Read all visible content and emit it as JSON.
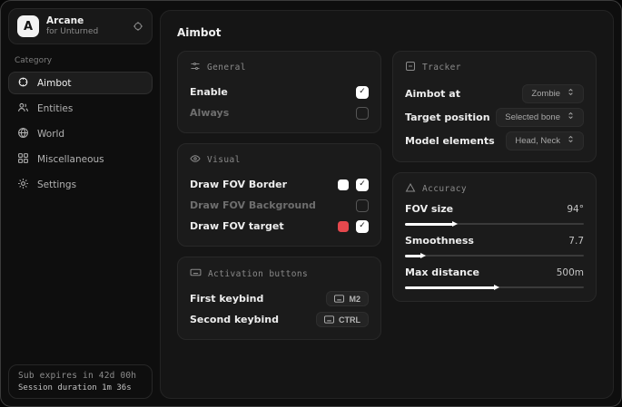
{
  "app": {
    "name": "Arcane",
    "subtitle": "for Unturned",
    "logo_letter": "A"
  },
  "sidebar": {
    "category_label": "Category",
    "items": [
      {
        "label": "Aimbot",
        "active": true
      },
      {
        "label": "Entities",
        "active": false
      },
      {
        "label": "World",
        "active": false
      },
      {
        "label": "Miscellaneous",
        "active": false
      },
      {
        "label": "Settings",
        "active": false
      }
    ],
    "status": {
      "line1": "Sub expires in 42d 00h",
      "line2": "Session duration 1m 36s"
    }
  },
  "page": {
    "title": "Aimbot"
  },
  "sections": {
    "general": {
      "title": "General",
      "rows": [
        {
          "label": "Enable",
          "checked": true
        },
        {
          "label": "Always",
          "checked": false
        }
      ]
    },
    "visual": {
      "title": "Visual",
      "rows": [
        {
          "label": "Draw FOV Border",
          "checked": true,
          "swatch": "#ffffff"
        },
        {
          "label": "Draw FOV Background",
          "checked": false
        },
        {
          "label": "Draw FOV target",
          "checked": true,
          "swatch": "#e5484d"
        }
      ]
    },
    "activation": {
      "title": "Activation buttons",
      "rows": [
        {
          "label": "First keybind",
          "key": "M2"
        },
        {
          "label": "Second keybind",
          "key": "CTRL"
        }
      ]
    },
    "tracker": {
      "title": "Tracker",
      "rows": [
        {
          "label": "Aimbot at",
          "value": "Zombie"
        },
        {
          "label": "Target position",
          "value": "Selected bone"
        },
        {
          "label": "Model elements",
          "value": "Head, Neck"
        }
      ]
    },
    "accuracy": {
      "title": "Accuracy",
      "rows": [
        {
          "label": "FOV size",
          "value": "94°",
          "percent": 27
        },
        {
          "label": "Smoothness",
          "value": "7.7",
          "percent": 9
        },
        {
          "label": "Max distance",
          "value": "500m",
          "percent": 50
        }
      ]
    }
  },
  "colors": {
    "accent_red": "#e5484d",
    "swatch_white": "#ffffff"
  }
}
